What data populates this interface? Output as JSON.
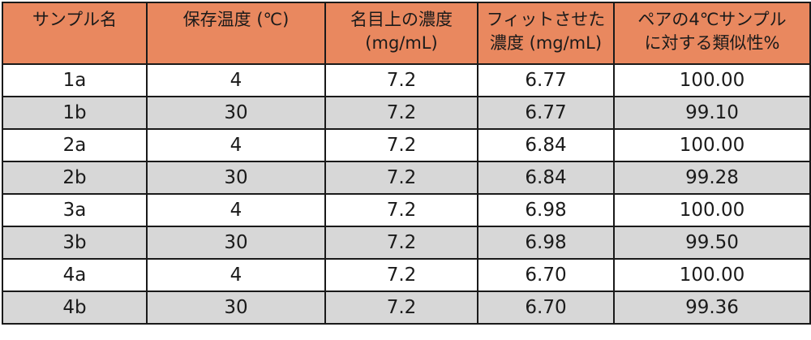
{
  "header": {
    "col1": "サンプル名",
    "col2": "保存温度 (℃)",
    "col3": [
      "名目上の濃度",
      "(mg/mL)"
    ],
    "col4": [
      "フィットさせた",
      "濃度 (mg/mL)"
    ],
    "col5": [
      "ペアの4℃サンプル",
      "に対する類似性%"
    ]
  },
  "rows": [
    [
      "1a",
      "4",
      "7.2",
      "6.77",
      "100.00"
    ],
    [
      "1b",
      "30",
      "7.2",
      "6.77",
      "99.10"
    ],
    [
      "2a",
      "4",
      "7.2",
      "6.84",
      "100.00"
    ],
    [
      "2b",
      "30",
      "7.2",
      "6.84",
      "99.28"
    ],
    [
      "3a",
      "4",
      "7.2",
      "6.98",
      "100.00"
    ],
    [
      "3b",
      "30",
      "7.2",
      "6.98",
      "99.50"
    ],
    [
      "4a",
      "4",
      "7.2",
      "6.70",
      "100.00"
    ],
    [
      "4b",
      "30",
      "7.2",
      "6.70",
      "99.36"
    ]
  ],
  "colors": {
    "header_bg": "#e9885f",
    "row_alt_bg": "#d7d7d7",
    "row_bg": "#ffffff",
    "border": "#1a1a1a"
  }
}
